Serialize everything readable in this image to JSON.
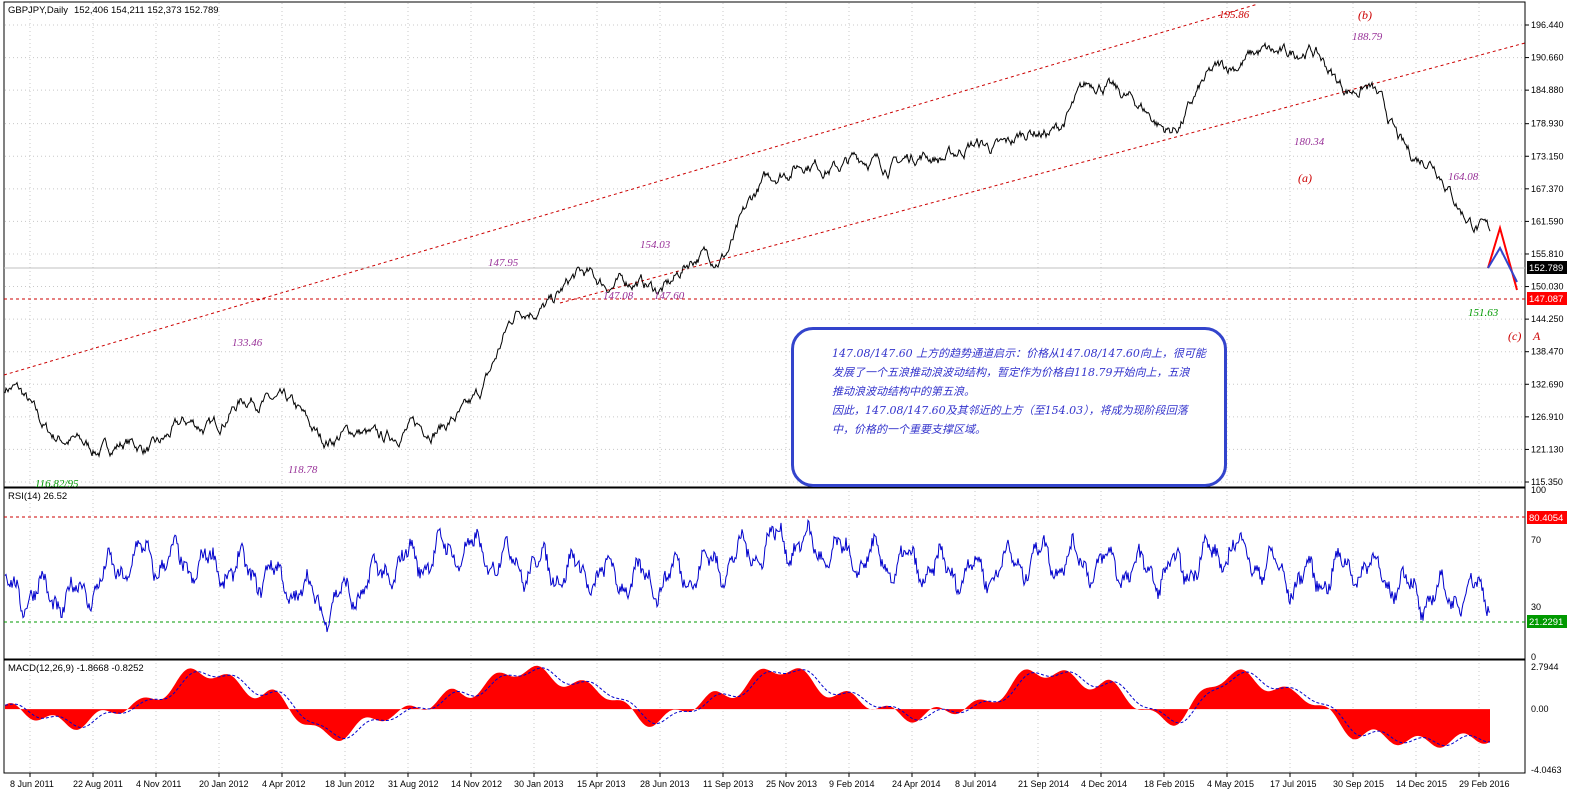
{
  "window": {
    "symbol_header": "GBPJPY,Daily",
    "ohlc": "152,406 154,211 152,373 152.789"
  },
  "main_panel": {
    "yticks": [
      "196.440",
      "190.660",
      "184.880",
      "178.930",
      "173.150",
      "167.370",
      "161.590",
      "155.810",
      "150.030",
      "144.250",
      "138.470",
      "132.690",
      "126.910",
      "121.130",
      "115.350"
    ],
    "current_price": "152.789",
    "support_price": "147.087",
    "wave_labels": {
      "b": "(b)",
      "a": "(a)",
      "c": "(c)",
      "A": "A"
    },
    "price_labels": [
      {
        "text": "195.86",
        "color": "#cc0000"
      },
      {
        "text": "188.79",
        "color": "#993399"
      },
      {
        "text": "180.34",
        "color": "#993399"
      },
      {
        "text": "164.08",
        "color": "#993399"
      },
      {
        "text": "151.63",
        "color": "#009900"
      },
      {
        "text": "154.03",
        "color": "#993399"
      },
      {
        "text": "147.95",
        "color": "#993399"
      },
      {
        "text": "147.08",
        "color": "#993399"
      },
      {
        "text": "147.60",
        "color": "#993399"
      },
      {
        "text": "133.46",
        "color": "#993399"
      },
      {
        "text": "118.78",
        "color": "#993399"
      },
      {
        "text": "116.82/95",
        "color": "#009900"
      }
    ],
    "note_lines": [
      "147.08/147.60 上方的趋势通道启示：价格从147.08/147.60向上，很可能",
      "发展了一个五浪推动浪波动结构，暂定作为价格自118.79开始向上，五浪",
      "推动浪波动结构中的第五浪。",
      "因此，147.08/147.60及其邻近的上方（至154.03），将成为现阶段回落",
      "中，价格的一个重要支撑区域。"
    ]
  },
  "rsi_panel": {
    "label": "RSI(14) 26.52",
    "yticks": [
      "100",
      "70",
      "30",
      "0"
    ],
    "upper_level": "80.4054",
    "lower_level": "21.2291"
  },
  "macd_panel": {
    "label": "MACD(12,26,9) -1.8668 -0.8252",
    "yticks": [
      "2.7944",
      "0.00",
      "-4.0463"
    ]
  },
  "x_axis": {
    "labels": [
      "8 Jun 2011",
      "22 Aug 2011",
      "4 Nov 2011",
      "20 Jan 2012",
      "4 Apr 2012",
      "18 Jun 2012",
      "31 Aug 2012",
      "14 Nov 2012",
      "30 Jan 2013",
      "15 Apr 2013",
      "28 Jun 2013",
      "11 Sep 2013",
      "25 Nov 2013",
      "9 Feb 2014",
      "24 Apr 2014",
      "8 Jul 2014",
      "21 Sep 2014",
      "4 Dec 2014",
      "18 Feb 2015",
      "4 May 2015",
      "17 Jul 2015",
      "30 Sep 2015",
      "14 Dec 2015",
      "29 Feb 2016"
    ]
  },
  "colors": {
    "price_line": "#000000",
    "rsi_line": "#0000cc",
    "macd_hist": "#ff0000",
    "signal_line": "#0000cc",
    "channel": "#cc0000",
    "note_border": "#3344cc",
    "price_badge": "#000000",
    "support_badge": "#ff0000",
    "rsi_upper_badge": "#ff0000",
    "rsi_lower_badge": "#009900"
  },
  "chart_data": {
    "type": "line",
    "title": "GBPJPY,Daily",
    "x": [
      "8 Jun 2011",
      "22 Aug 2011",
      "4 Nov 2011",
      "20 Jan 2012",
      "4 Apr 2012",
      "18 Jun 2012",
      "31 Aug 2012",
      "14 Nov 2012",
      "30 Jan 2013",
      "15 Apr 2013",
      "28 Jun 2013",
      "11 Sep 2013",
      "25 Nov 2013",
      "9 Feb 2014",
      "24 Apr 2014",
      "8 Jul 2014",
      "21 Sep 2014",
      "4 Dec 2014",
      "18 Feb 2015",
      "4 May 2015",
      "17 Jul 2015",
      "30 Sep 2015",
      "14 Dec 2015",
      "29 Feb 2016"
    ],
    "series": [
      {
        "name": "Close",
        "values": [
          131.5,
          122.0,
          121.5,
          125.5,
          130.5,
          123.5,
          123.8,
          126.5,
          145.5,
          151.5,
          150.0,
          156.0,
          171.0,
          172.0,
          172.5,
          174.5,
          177.0,
          186.0,
          178.5,
          190.0,
          192.0,
          185.0,
          172.0,
          159.0
        ]
      },
      {
        "name": "RSI(14)",
        "values": [
          40,
          35,
          60,
          55,
          50,
          30,
          55,
          65,
          55,
          50,
          45,
          55,
          70,
          60,
          55,
          50,
          60,
          55,
          50,
          65,
          45,
          55,
          35,
          40
        ]
      },
      {
        "name": "MACD",
        "values": [
          0.0,
          -1.0,
          0.3,
          2.5,
          1.0,
          -1.8,
          -0.3,
          1.0,
          2.6,
          1.5,
          -0.8,
          0.8,
          2.7,
          0.8,
          -0.5,
          0.2,
          2.5,
          1.6,
          -0.8,
          2.3,
          1.0,
          -1.7,
          -2.2,
          -1.9
        ]
      }
    ],
    "ylim": [
      115.35,
      196.44
    ],
    "rsi_ylim": [
      0,
      100
    ],
    "macd_ylim": [
      -4.0463,
      2.7944
    ],
    "annotations": [
      "195.86",
      "188.79",
      "180.34",
      "164.08",
      "151.63",
      "154.03",
      "147.95",
      "147.08",
      "147.60",
      "133.46",
      "118.78",
      "116.82/95"
    ],
    "grid": true
  }
}
